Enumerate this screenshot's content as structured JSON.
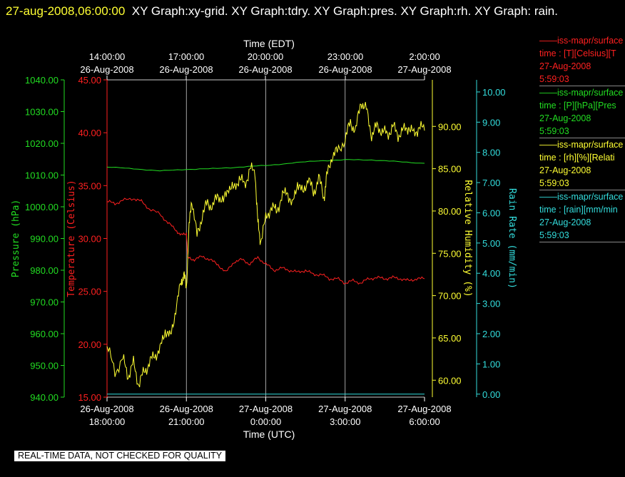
{
  "header": {
    "timestamp": "27-aug-2008,06:00:00",
    "graphs": "XY Graph:xy-grid.  XY Graph:tdry.  XY Graph:pres.  XY Graph:rh.  XY Graph: rain."
  },
  "colors": {
    "temperature": "#ff2020",
    "pressure": "#22dd22",
    "humidity": "#ffff33",
    "rain": "#33dddd",
    "grid": "#cccccc"
  },
  "legend": [
    {
      "line1": "——iss-mapr/surface",
      "line2": "time : [T][Celsius][T",
      "line3": "27-Aug-2008",
      "line4": "5:59:03",
      "color": "#ff2020"
    },
    {
      "line1": "——iss-mapr/surface",
      "line2": "time : [P][hPa][Pres",
      "line3": "27-Aug-2008",
      "line4": "5:59:03",
      "color": "#22dd22"
    },
    {
      "line1": "——iss-mapr/surface",
      "line2": "time : [rh][%][Relati",
      "line3": "27-Aug-2008",
      "line4": "5:59:03",
      "color": "#ffff33"
    },
    {
      "line1": "——iss-mapr/surface",
      "line2": "time : [rain][mm/min",
      "line3": "27-Aug-2008",
      "line4": "5:59:03",
      "color": "#33dddd"
    }
  ],
  "notice": "REAL-TIME DATA, NOT CHECKED FOR QUALITY",
  "chart_data": {
    "type": "line",
    "x_top_label": "Time (EDT)",
    "x_bottom_label": "Time (UTC)",
    "x_range_hours_utc": [
      "26-Aug-2008 18:00:00",
      "27-Aug-2008 6:00:00"
    ],
    "top_ticks": [
      {
        "t": "14:00:00",
        "d": "26-Aug-2008"
      },
      {
        "t": "17:00:00",
        "d": "26-Aug-2008"
      },
      {
        "t": "20:00:00",
        "d": "26-Aug-2008"
      },
      {
        "t": "23:00:00",
        "d": "26-Aug-2008"
      },
      {
        "t": "2:00:00",
        "d": "27-Aug-2008"
      }
    ],
    "bottom_ticks": [
      {
        "d": "26-Aug-2008",
        "t": "18:00:00"
      },
      {
        "d": "26-Aug-2008",
        "t": "21:00:00"
      },
      {
        "d": "27-Aug-2008",
        "t": "0:00:00"
      },
      {
        "d": "27-Aug-2008",
        "t": "3:00:00"
      },
      {
        "d": "27-Aug-2008",
        "t": "6:00:00"
      }
    ],
    "grid": "vertical",
    "axes": {
      "pressure": {
        "label": "Pressure (hPa)",
        "range": [
          940,
          1040
        ],
        "ticks": [
          "940.00",
          "950.00",
          "960.00",
          "970.00",
          "980.00",
          "990.00",
          "1000.00",
          "1010.00",
          "1020.00",
          "1030.00",
          "1040.00"
        ]
      },
      "temperature": {
        "label": "Temperature (Celsius)",
        "range": [
          15,
          45
        ],
        "ticks": [
          "15.00",
          "20.00",
          "25.00",
          "30.00",
          "35.00",
          "40.00",
          "45.00"
        ]
      },
      "humidity": {
        "label": "Relative Humidity (%)",
        "range": [
          58,
          95.5
        ],
        "ticks": [
          "60.00",
          "65.00",
          "70.00",
          "75.00",
          "80.00",
          "85.00",
          "90.00"
        ]
      },
      "rain": {
        "label": "Rain Rate (mm/min)",
        "range": [
          -0.1,
          10.4
        ],
        "ticks": [
          "0.00",
          "1.00",
          "2.00",
          "3.00",
          "4.00",
          "5.00",
          "6.00",
          "7.00",
          "8.00",
          "9.00",
          "10.00"
        ]
      }
    },
    "series": [
      {
        "name": "iss-mapr/surface T",
        "axis": "temperature",
        "points": [
          [
            0,
            33.5
          ],
          [
            0.3,
            33.3
          ],
          [
            0.6,
            33.6
          ],
          [
            1.0,
            33.8
          ],
          [
            1.3,
            33.5
          ],
          [
            1.6,
            32.8
          ],
          [
            2.0,
            32.3
          ],
          [
            2.3,
            31.5
          ],
          [
            2.6,
            30.8
          ],
          [
            2.8,
            30.3
          ],
          [
            3.0,
            30.5
          ],
          [
            3.05,
            28.2
          ],
          [
            3.3,
            28.0
          ],
          [
            3.6,
            28.3
          ],
          [
            3.9,
            28.0
          ],
          [
            4.2,
            27.5
          ],
          [
            4.5,
            26.8
          ],
          [
            4.8,
            27.8
          ],
          [
            5.1,
            28.0
          ],
          [
            5.4,
            27.6
          ],
          [
            5.7,
            28.2
          ],
          [
            6.0,
            27.6
          ],
          [
            6.3,
            27.0
          ],
          [
            6.6,
            27.2
          ],
          [
            6.9,
            27.0
          ],
          [
            7.2,
            26.8
          ],
          [
            7.5,
            27.0
          ],
          [
            7.8,
            26.6
          ],
          [
            8.1,
            26.6
          ],
          [
            8.4,
            26.2
          ],
          [
            8.7,
            26.2
          ],
          [
            9.0,
            25.8
          ],
          [
            9.3,
            26.0
          ],
          [
            9.6,
            25.8
          ],
          [
            9.9,
            26.2
          ],
          [
            10.2,
            26.3
          ],
          [
            10.5,
            26.2
          ],
          [
            10.8,
            26.3
          ],
          [
            11.1,
            26.2
          ],
          [
            11.4,
            26.0
          ],
          [
            11.7,
            26.2
          ],
          [
            12,
            26.2
          ]
        ]
      },
      {
        "name": "iss-mapr/surface P",
        "axis": "pressure",
        "points": [
          [
            0,
            1012.5
          ],
          [
            1,
            1012.0
          ],
          [
            2,
            1011.3
          ],
          [
            3,
            1011.8
          ],
          [
            4,
            1012.0
          ],
          [
            5,
            1012.5
          ],
          [
            6,
            1013.0
          ],
          [
            7,
            1013.8
          ],
          [
            8,
            1014.5
          ],
          [
            9,
            1014.8
          ],
          [
            10,
            1014.8
          ],
          [
            11,
            1014.2
          ],
          [
            12,
            1013.7
          ]
        ]
      },
      {
        "name": "iss-mapr/surface rh",
        "axis": "humidity",
        "points": [
          [
            0,
            64
          ],
          [
            0.3,
            61
          ],
          [
            0.6,
            62.5
          ],
          [
            0.8,
            60.5
          ],
          [
            1.0,
            62
          ],
          [
            1.2,
            59.5
          ],
          [
            1.4,
            61
          ],
          [
            1.6,
            62
          ],
          [
            1.8,
            63
          ],
          [
            2.0,
            63.5
          ],
          [
            2.2,
            66
          ],
          [
            2.4,
            65
          ],
          [
            2.6,
            68.5
          ],
          [
            2.8,
            71.5
          ],
          [
            2.9,
            72.5
          ],
          [
            3.0,
            71
          ],
          [
            3.1,
            78
          ],
          [
            3.2,
            81.5
          ],
          [
            3.4,
            77
          ],
          [
            3.6,
            79.5
          ],
          [
            3.8,
            81
          ],
          [
            4.0,
            80.5
          ],
          [
            4.2,
            82
          ],
          [
            4.4,
            81
          ],
          [
            4.6,
            83
          ],
          [
            4.8,
            82.5
          ],
          [
            5.0,
            84
          ],
          [
            5.2,
            83
          ],
          [
            5.4,
            85
          ],
          [
            5.6,
            84.5
          ],
          [
            5.7,
            78.5
          ],
          [
            5.8,
            76.5
          ],
          [
            6.0,
            79
          ],
          [
            6.2,
            80.5
          ],
          [
            6.4,
            80
          ],
          [
            6.6,
            81.5
          ],
          [
            6.8,
            82.5
          ],
          [
            7.0,
            80.5
          ],
          [
            7.2,
            83.5
          ],
          [
            7.4,
            82
          ],
          [
            7.6,
            84
          ],
          [
            7.8,
            82
          ],
          [
            8.0,
            84
          ],
          [
            8.2,
            81.5
          ],
          [
            8.3,
            84
          ],
          [
            8.5,
            86.5
          ],
          [
            8.7,
            87
          ],
          [
            9.0,
            88.5
          ],
          [
            9.2,
            90.5
          ],
          [
            9.4,
            89.5
          ],
          [
            9.6,
            93
          ],
          [
            9.8,
            92
          ],
          [
            10.0,
            89
          ],
          [
            10.2,
            90
          ],
          [
            10.4,
            89.5
          ],
          [
            10.6,
            89
          ],
          [
            10.8,
            90
          ],
          [
            11.0,
            89
          ],
          [
            11.2,
            89.5
          ],
          [
            11.4,
            90
          ],
          [
            11.6,
            89
          ],
          [
            11.8,
            90
          ],
          [
            12,
            89.5
          ]
        ]
      },
      {
        "name": "iss-mapr/surface rain",
        "axis": "rain",
        "points": [
          [
            0,
            0.0
          ],
          [
            12,
            0.0
          ]
        ]
      }
    ]
  }
}
